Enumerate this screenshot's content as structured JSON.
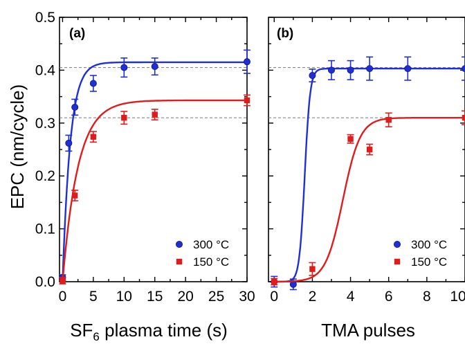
{
  "y_axis": {
    "label": "EPC (nm/cycle)",
    "ylim": [
      0.0,
      0.5
    ],
    "ticks": [
      "0.0",
      "0.1",
      "0.2",
      "0.3",
      "0.4",
      "0.5"
    ]
  },
  "colors": {
    "series_300": "#1f2fd6",
    "series_150": "#e01b1b",
    "refline": "#777777"
  },
  "chart_data": [
    {
      "type": "scatter",
      "panel_label": "(a)",
      "xlabel_main": "SF",
      "xlabel_sub": "6",
      "xlabel_rest": " plasma time (s)",
      "xlim": [
        -0.5,
        30
      ],
      "xticks": [
        0,
        5,
        10,
        15,
        20,
        25,
        30
      ],
      "ylim": [
        0.0,
        0.5
      ],
      "reference_lines": [
        0.405,
        0.31
      ],
      "legend_position": "bottom-right",
      "series": [
        {
          "name": "300 °C",
          "marker": "circle",
          "x": [
            0,
            1,
            2,
            5,
            10,
            15,
            30
          ],
          "y": [
            0.008,
            0.262,
            0.33,
            0.375,
            0.405,
            0.407,
            0.416
          ],
          "err": [
            0.005,
            0.015,
            0.015,
            0.015,
            0.018,
            0.016,
            0.022
          ],
          "fit": {
            "model": "saturation",
            "a": 0.415,
            "tau": 1.25
          }
        },
        {
          "name": "150 °C",
          "marker": "square",
          "x": [
            0,
            2,
            5,
            10,
            15,
            30
          ],
          "y": [
            0.002,
            0.163,
            0.274,
            0.31,
            0.316,
            0.343
          ],
          "err": [
            0.006,
            0.01,
            0.01,
            0.012,
            0.01,
            0.01
          ],
          "fit": {
            "model": "saturation",
            "a": 0.343,
            "tau": 2.5
          }
        }
      ]
    },
    {
      "type": "scatter",
      "panel_label": "(b)",
      "xlabel_main": "TMA pulses",
      "xlabel_sub": "",
      "xlabel_rest": "",
      "xlim": [
        -0.3,
        10
      ],
      "xticks": [
        0,
        2,
        4,
        6,
        8,
        10
      ],
      "ylim": [
        0.0,
        0.5
      ],
      "reference_lines": [
        0.405,
        0.31
      ],
      "legend_position": "bottom-right",
      "series": [
        {
          "name": "300 °C",
          "marker": "circle",
          "x": [
            0,
            1,
            2,
            3,
            4,
            5,
            7,
            10
          ],
          "y": [
            0.0,
            -0.005,
            0.39,
            0.4,
            0.4,
            0.403,
            0.403,
            0.403
          ],
          "err": [
            0.01,
            0.01,
            0.012,
            0.018,
            0.018,
            0.022,
            0.022,
            0.022
          ],
          "fit": {
            "model": "sigmoid",
            "a": 0.403,
            "x0": 1.6,
            "k": 7.0
          }
        },
        {
          "name": "150 °C",
          "marker": "square",
          "x": [
            0,
            2,
            4,
            5,
            6,
            10
          ],
          "y": [
            0.0,
            0.024,
            0.27,
            0.25,
            0.306,
            0.31
          ],
          "err": [
            0.006,
            0.012,
            0.008,
            0.01,
            0.013,
            0.013
          ],
          "fit": {
            "model": "sigmoid",
            "a": 0.31,
            "x0": 3.6,
            "k": 2.2
          }
        }
      ]
    }
  ]
}
